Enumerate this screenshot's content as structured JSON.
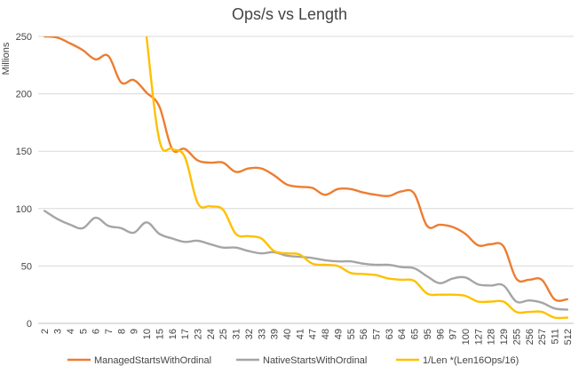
{
  "chart_data": {
    "type": "line",
    "title": "Ops/s vs Length",
    "ylabel": "Millions",
    "xlabel": "",
    "ylim": [
      0,
      250
    ],
    "yticks": [
      0,
      50,
      100,
      150,
      200,
      250
    ],
    "grid": "horizontal",
    "legend_position": "bottom",
    "categories": [
      "2",
      "3",
      "4",
      "5",
      "6",
      "7",
      "8",
      "9",
      "10",
      "15",
      "16",
      "17",
      "23",
      "24",
      "25",
      "31",
      "32",
      "33",
      "39",
      "40",
      "41",
      "47",
      "48",
      "49",
      "55",
      "56",
      "57",
      "63",
      "64",
      "65",
      "95",
      "96",
      "97",
      "100",
      "127",
      "128",
      "129",
      "255",
      "256",
      "257",
      "511",
      "512"
    ],
    "series": [
      {
        "name": "ManagedStartsWithOrdinal",
        "color": "#ED7D31",
        "values": [
          250,
          249,
          244,
          238,
          230,
          233,
          210,
          212,
          201,
          189,
          152,
          152,
          142,
          140,
          140,
          132,
          135,
          135,
          129,
          121,
          119,
          118,
          112,
          117,
          117,
          114,
          112,
          111,
          115,
          113,
          85,
          86,
          84,
          78,
          68,
          69,
          67,
          39,
          38,
          38,
          21,
          21
        ]
      },
      {
        "name": "NativeStartsWithOrdinal",
        "color": "#A5A5A5",
        "values": [
          98,
          91,
          86,
          83,
          92,
          85,
          83,
          79,
          88,
          78,
          74,
          71,
          72,
          69,
          66,
          66,
          63,
          61,
          62,
          59,
          58,
          57,
          55,
          54,
          54,
          52,
          51,
          51,
          49,
          48,
          41,
          35,
          39,
          40,
          34,
          33,
          33,
          19,
          20,
          18,
          13,
          12
        ]
      },
      {
        "name": "1/Len *(Len16Ops/16)",
        "color": "#FFC000",
        "values": [
          null,
          null,
          null,
          null,
          null,
          null,
          null,
          null,
          250,
          160,
          152,
          145,
          105,
          102,
          99,
          78,
          76,
          74,
          63,
          61,
          60,
          52,
          51,
          50,
          44,
          43,
          42,
          39,
          38,
          37,
          26,
          25,
          25,
          24,
          19,
          19,
          19,
          10,
          10,
          10,
          5,
          5
        ]
      }
    ]
  }
}
